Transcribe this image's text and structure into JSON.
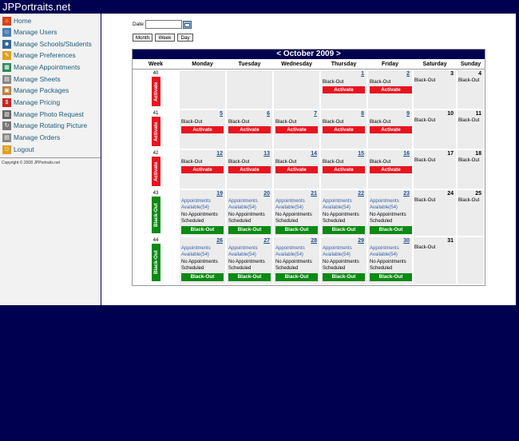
{
  "header": {
    "title": "JPPortraits.net"
  },
  "sidebar": {
    "items": [
      {
        "label": "Home",
        "icon": "home-icon",
        "color": "#d9401a"
      },
      {
        "label": "Manage Users",
        "icon": "users-icon",
        "color": "#4a7fb5"
      },
      {
        "label": "Manage Schools/Students",
        "icon": "people-icon",
        "color": "#336699"
      },
      {
        "label": "Manage Preferences",
        "icon": "pencil-icon",
        "color": "#e0a020"
      },
      {
        "label": "Manage Appointments",
        "icon": "appointments-icon",
        "color": "#2e8b57"
      },
      {
        "label": "Manage Sheets",
        "icon": "sheets-icon",
        "color": "#888888"
      },
      {
        "label": "Manage Packages",
        "icon": "packages-icon",
        "color": "#c08040"
      },
      {
        "label": "Manage Pricing",
        "icon": "pricing-icon",
        "color": "#cc2222"
      },
      {
        "label": "Manage Photo Request",
        "icon": "photo-icon",
        "color": "#666666"
      },
      {
        "label": "Manage Rotating Picture",
        "icon": "rotate-icon",
        "color": "#777777"
      },
      {
        "label": "Manage Orders",
        "icon": "orders-icon",
        "color": "#888888"
      },
      {
        "label": "Logout",
        "icon": "logout-icon",
        "color": "#e0a020"
      }
    ],
    "copyright": "Copyright © 2008 JPPortraits.net"
  },
  "toolbar": {
    "date_label": "Date:",
    "date_value": "",
    "month_label": "Month",
    "week_label": "Week",
    "day_label": "Day"
  },
  "calendar": {
    "prev_label": "<",
    "month_title": "October 2009",
    "next_label": ">",
    "headers": [
      "Week",
      "Monday",
      "Tuesday",
      "Wednesday",
      "Thursday",
      "Friday",
      "Saturday",
      "Sunday"
    ],
    "weeks": [
      {
        "week": "40",
        "action": "Activate",
        "days": [
          {
            "type": "empty"
          },
          {
            "type": "empty"
          },
          {
            "type": "empty"
          },
          {
            "type": "blackout",
            "num": "1"
          },
          {
            "type": "blackout",
            "num": "2"
          },
          {
            "type": "weekend",
            "num": "3"
          },
          {
            "type": "weekend",
            "num": "4"
          }
        ]
      },
      {
        "week": "41",
        "action": "Activate",
        "days": [
          {
            "type": "blackout",
            "num": "5"
          },
          {
            "type": "blackout",
            "num": "6"
          },
          {
            "type": "blackout",
            "num": "7"
          },
          {
            "type": "blackout",
            "num": "8"
          },
          {
            "type": "blackout",
            "num": "9"
          },
          {
            "type": "weekend",
            "num": "10"
          },
          {
            "type": "weekend",
            "num": "11"
          }
        ]
      },
      {
        "week": "42",
        "action": "Activate",
        "days": [
          {
            "type": "blackout",
            "num": "12"
          },
          {
            "type": "blackout",
            "num": "13"
          },
          {
            "type": "blackout",
            "num": "14"
          },
          {
            "type": "blackout",
            "num": "15"
          },
          {
            "type": "blackout",
            "num": "16"
          },
          {
            "type": "weekend",
            "num": "17"
          },
          {
            "type": "weekend",
            "num": "18"
          }
        ]
      },
      {
        "week": "43",
        "action": "Black-Out",
        "days": [
          {
            "type": "open",
            "num": "19"
          },
          {
            "type": "open",
            "num": "20"
          },
          {
            "type": "open",
            "num": "21"
          },
          {
            "type": "open",
            "num": "22"
          },
          {
            "type": "open",
            "num": "23"
          },
          {
            "type": "weekend",
            "num": "24"
          },
          {
            "type": "weekend",
            "num": "25"
          }
        ]
      },
      {
        "week": "44",
        "action": "Black-Out",
        "days": [
          {
            "type": "open",
            "num": "26"
          },
          {
            "type": "open",
            "num": "27"
          },
          {
            "type": "open",
            "num": "28"
          },
          {
            "type": "open",
            "num": "29"
          },
          {
            "type": "open",
            "num": "30"
          },
          {
            "type": "weekend",
            "num": "31"
          },
          {
            "type": "empty"
          }
        ]
      }
    ],
    "labels": {
      "blackout": "Black-Out",
      "activate": "Activate",
      "appointments_available": "Appointments Available(54)",
      "no_appointments": "No Appointments Scheduled",
      "blackout_button": "Black-Out"
    },
    "colors": {
      "header_bg": "#000050",
      "activate": "#e8141e",
      "blackout": "#0c8a14",
      "cell_bg": "#ececec",
      "link": "#1f4e8c"
    }
  }
}
